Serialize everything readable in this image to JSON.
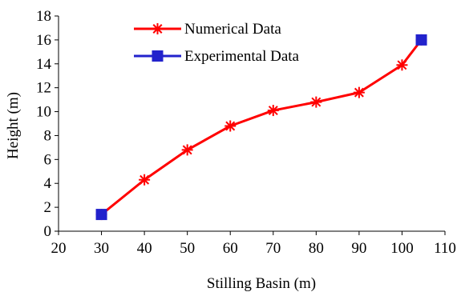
{
  "chart_data": {
    "type": "line",
    "xlabel": "Stilling Basin (m)",
    "ylabel": "Height (m)",
    "xlim": [
      20,
      110
    ],
    "ylim": [
      0,
      18
    ],
    "xticks": [
      "20",
      "30",
      "40",
      "50",
      "60",
      "70",
      "80",
      "90",
      "100",
      "110"
    ],
    "yticks": [
      "0",
      "2",
      "4",
      "6",
      "8",
      "10",
      "12",
      "14",
      "16",
      "18"
    ],
    "grid": false,
    "legend_position": "top-center",
    "series": [
      {
        "name": "Numerical Data",
        "color": "#ff0000",
        "marker": "asterisk",
        "points": [
          [
            30,
            1.4
          ],
          [
            40,
            4.3
          ],
          [
            50,
            6.8
          ],
          [
            60,
            8.8
          ],
          [
            70,
            10.1
          ],
          [
            80,
            10.8
          ],
          [
            90,
            11.6
          ],
          [
            100,
            13.9
          ],
          [
            104.5,
            16.0
          ]
        ]
      },
      {
        "name": "Experimental Data",
        "color": "#2222cc",
        "marker": "square",
        "points": [
          [
            30,
            1.4
          ],
          [
            104.5,
            16.0
          ]
        ]
      }
    ]
  }
}
